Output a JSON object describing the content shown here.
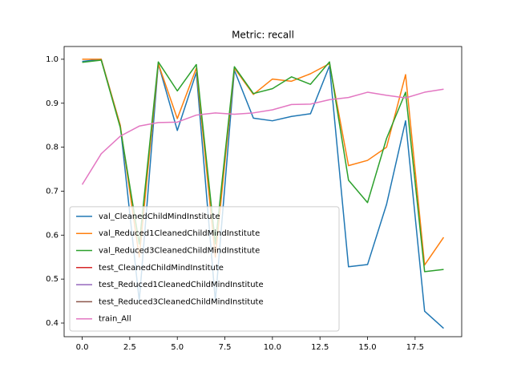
{
  "chart_data": {
    "type": "line",
    "title": "Metric: recall",
    "x": [
      0,
      1,
      2,
      3,
      4,
      5,
      6,
      7,
      8,
      9,
      10,
      11,
      12,
      13,
      14,
      15,
      16,
      17,
      18,
      19
    ],
    "series": [
      {
        "name": "val_CleanedChildMindInstitute",
        "color": "#1f77b4",
        "values": [
          0.995,
          1.0,
          0.85,
          0.45,
          0.99,
          0.838,
          0.97,
          0.45,
          0.975,
          0.866,
          0.86,
          0.87,
          0.876,
          0.985,
          0.528,
          0.533,
          0.67,
          0.86,
          0.427,
          0.388
        ]
      },
      {
        "name": "val_Reduced1CleanedChildMindInstitute",
        "color": "#ff7f0e",
        "values": [
          1.0,
          1.0,
          0.85,
          0.55,
          0.99,
          0.865,
          0.98,
          0.55,
          0.98,
          0.92,
          0.955,
          0.95,
          0.967,
          0.99,
          0.758,
          0.77,
          0.8,
          0.965,
          0.532,
          0.595
        ]
      },
      {
        "name": "val_Reduced3CleanedChildMindInstitute",
        "color": "#2ca02c",
        "values": [
          0.993,
          0.998,
          0.845,
          0.58,
          0.994,
          0.928,
          0.988,
          0.58,
          0.983,
          0.922,
          0.933,
          0.96,
          0.943,
          0.994,
          0.725,
          0.674,
          0.82,
          0.925,
          0.517,
          0.522
        ]
      },
      {
        "name": "test_CleanedChildMindInstitute",
        "color": "#d62728",
        "values": [
          null,
          null,
          null,
          null,
          null,
          null,
          null,
          null,
          null,
          null,
          null,
          null,
          null,
          null,
          null,
          null,
          null,
          null,
          null,
          null
        ]
      },
      {
        "name": "test_Reduced1CleanedChildMindInstitute",
        "color": "#9467bd",
        "values": [
          null,
          null,
          null,
          null,
          null,
          null,
          null,
          null,
          null,
          null,
          null,
          null,
          null,
          null,
          null,
          null,
          null,
          null,
          null,
          null
        ]
      },
      {
        "name": "test_Reduced3CleanedChildMindInstitute",
        "color": "#8c564b",
        "values": [
          null,
          null,
          null,
          null,
          null,
          null,
          null,
          null,
          null,
          null,
          null,
          null,
          null,
          null,
          null,
          null,
          null,
          null,
          null,
          null
        ]
      },
      {
        "name": "train_All",
        "color": "#e377c2",
        "values": [
          0.715,
          0.785,
          0.825,
          0.848,
          0.856,
          0.857,
          0.873,
          0.878,
          0.875,
          0.878,
          0.885,
          0.897,
          0.898,
          0.908,
          0.913,
          0.925,
          0.918,
          0.912,
          0.925,
          0.932
        ]
      }
    ],
    "xlim": [
      -0.95,
      19.95
    ],
    "xticks": [
      {
        "value": 0,
        "label": "0.0"
      },
      2.5,
      {
        "value": 5,
        "label": "5.0"
      },
      7.5,
      {
        "value": 10,
        "label": "10.0"
      },
      12.5,
      {
        "value": 15,
        "label": "15.0"
      },
      17.5
    ],
    "ylim": [
      0.369,
      1.029
    ],
    "yticks": [
      0.4,
      0.5,
      0.6,
      0.7,
      0.8,
      0.9,
      {
        "value": 1,
        "label": "1.0"
      }
    ],
    "legend": "lower left"
  }
}
